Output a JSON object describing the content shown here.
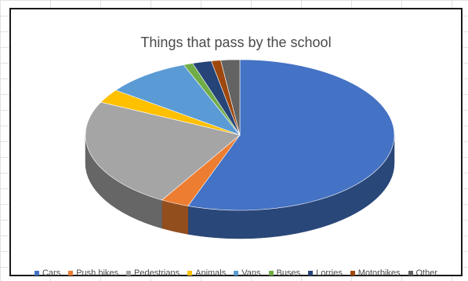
{
  "chart_data": {
    "type": "pie",
    "title": "Things that pass by the school",
    "categories": [
      "Cars",
      "Push bikes",
      "Pedestrians",
      "Animals",
      "Vans",
      "Buses",
      "Lorries",
      "Motorbikes",
      "Other"
    ],
    "values": [
      56,
      3,
      24,
      3,
      9,
      1,
      2,
      1,
      2
    ],
    "colors": [
      "#4472C4",
      "#ED7D31",
      "#A5A5A5",
      "#FFC000",
      "#5B9BD5",
      "#70AD47",
      "#264478",
      "#9E480E",
      "#636363"
    ],
    "legend_position": "bottom",
    "style": "3d"
  }
}
